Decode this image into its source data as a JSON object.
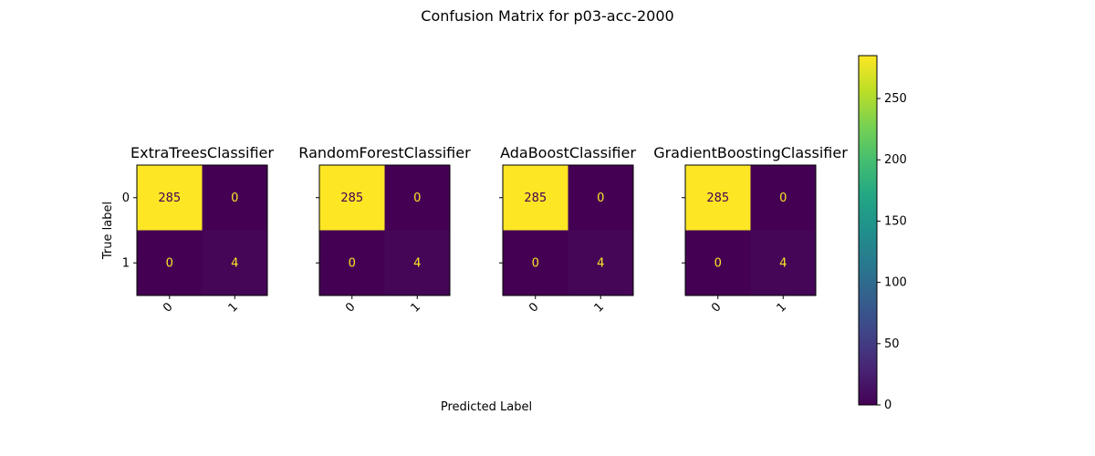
{
  "chart_data": {
    "type": "heatmap",
    "title": "Confusion Matrix for p03-acc-2000",
    "xlabel": "Predicted Label",
    "ylabel": "True label",
    "x_tick_labels": [
      "0",
      "1"
    ],
    "y_tick_labels": [
      "0",
      "1"
    ],
    "panels": [
      {
        "name": "ExtraTreesClassifier",
        "matrix": [
          [
            285,
            0
          ],
          [
            0,
            4
          ]
        ]
      },
      {
        "name": "RandomForestClassifier",
        "matrix": [
          [
            285,
            0
          ],
          [
            0,
            4
          ]
        ]
      },
      {
        "name": "AdaBoostClassifier",
        "matrix": [
          [
            285,
            0
          ],
          [
            0,
            4
          ]
        ]
      },
      {
        "name": "GradientBoostingClassifier",
        "matrix": [
          [
            285,
            0
          ],
          [
            0,
            4
          ]
        ]
      }
    ],
    "colorbar": {
      "colormap": "viridis",
      "range": [
        0,
        285
      ],
      "ticks": [
        0,
        50,
        100,
        150,
        200,
        250
      ]
    },
    "colors": {
      "high": "#fde725",
      "low": "#440154",
      "text_on_dark": "#fde725",
      "text_on_light": "#440154"
    }
  }
}
